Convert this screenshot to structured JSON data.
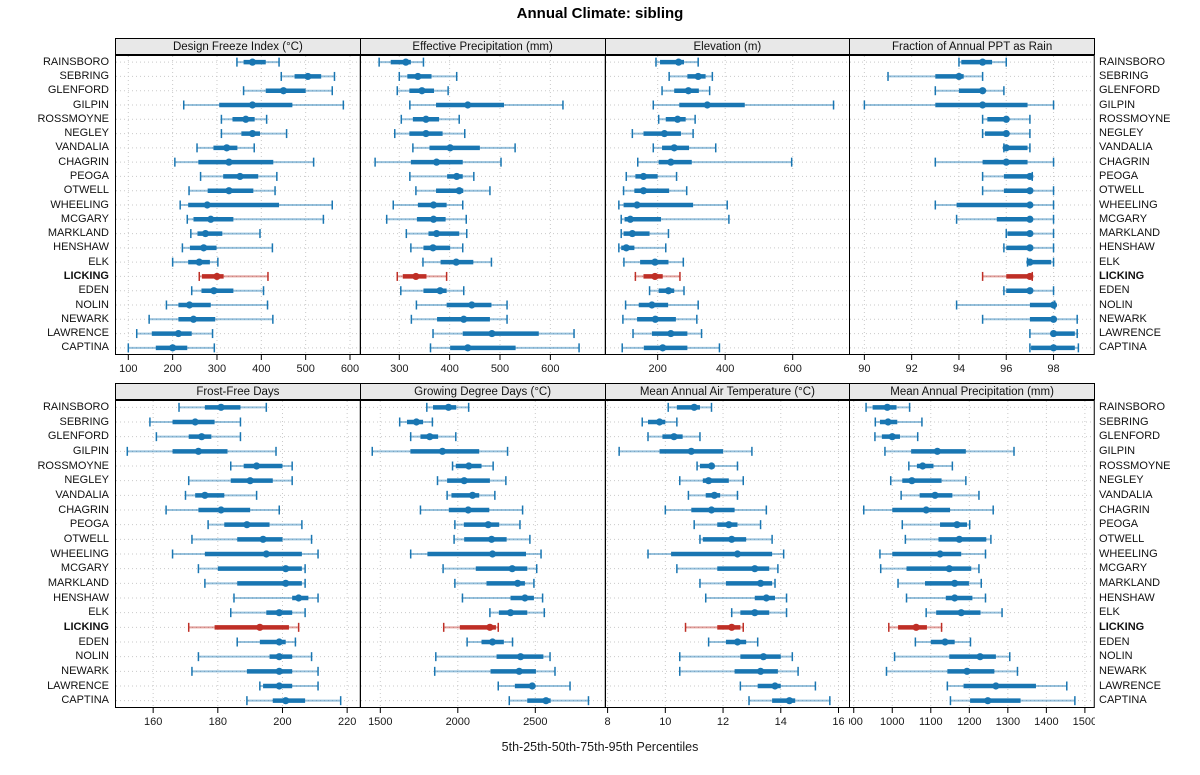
{
  "title": "Annual Climate: sibling",
  "caption": "5th-25th-50th-75th-95th Percentiles",
  "percentile_labels": [
    "5th",
    "25th",
    "50th",
    "75th",
    "95th"
  ],
  "highlight_site": "LICKING",
  "colors": {
    "primary": "#1976b2",
    "highlight": "#bf2f26",
    "grid": "#c9c9c9",
    "strip_bg": "#e8e8e8",
    "border": "#000000",
    "tick_label": "#1a1a1a"
  },
  "sites": [
    "RAINSBORO",
    "SEBRING",
    "GLENFORD",
    "GILPIN",
    "ROSSMOYNE",
    "NEGLEY",
    "VANDALIA",
    "CHAGRIN",
    "PEOGA",
    "OTWELL",
    "WHEELING",
    "MCGARY",
    "MARKLAND",
    "HENSHAW",
    "ELK",
    "LICKING",
    "EDEN",
    "NOLIN",
    "NEWARK",
    "LAWRENCE",
    "CAPTINA"
  ],
  "chart_data": [
    {
      "type": "interval-dotplot",
      "title": "Design Freeze Index (°C)",
      "grid": "dotted",
      "xlim": [
        70,
        622
      ],
      "ticks": [
        100,
        200,
        300,
        400,
        500,
        600
      ],
      "values": [
        [
          345,
          360,
          380,
          410,
          440
        ],
        [
          445,
          475,
          505,
          535,
          565
        ],
        [
          360,
          410,
          450,
          500,
          560
        ],
        [
          225,
          305,
          380,
          470,
          585
        ],
        [
          310,
          335,
          365,
          385,
          412
        ],
        [
          310,
          355,
          380,
          397,
          457
        ],
        [
          255,
          292,
          322,
          346,
          384
        ],
        [
          205,
          258,
          327,
          427,
          518
        ],
        [
          263,
          314,
          352,
          393,
          435
        ],
        [
          237,
          279,
          327,
          382,
          431
        ],
        [
          217,
          235,
          278,
          440,
          560
        ],
        [
          233,
          247,
          286,
          337,
          540
        ],
        [
          241,
          256,
          274,
          312,
          397
        ],
        [
          222,
          239,
          270,
          299,
          425
        ],
        [
          200,
          235,
          260,
          284,
          302
        ],
        [
          260,
          266,
          300,
          315,
          415
        ],
        [
          243,
          265,
          293,
          337,
          405
        ],
        [
          186,
          213,
          238,
          286,
          414
        ],
        [
          147,
          213,
          247,
          296,
          426
        ],
        [
          119,
          153,
          213,
          243,
          290
        ],
        [
          100,
          162,
          200,
          233,
          294
        ]
      ]
    },
    {
      "type": "interval-dotplot",
      "title": "Effective Precipitation (mm)",
      "grid": "dotted",
      "xlim": [
        222,
        708
      ],
      "ticks": [
        300,
        400,
        500,
        600
      ],
      "values": [
        [
          260,
          283,
          313,
          323,
          348
        ],
        [
          300,
          316,
          337,
          364,
          414
        ],
        [
          296,
          320,
          345,
          369,
          397
        ],
        [
          321,
          373,
          436,
          508,
          625
        ],
        [
          304,
          327,
          353,
          379,
          419
        ],
        [
          291,
          320,
          353,
          386,
          430
        ],
        [
          327,
          360,
          401,
          460,
          530
        ],
        [
          252,
          323,
          374,
          426,
          502
        ],
        [
          321,
          395,
          414,
          426,
          448
        ],
        [
          333,
          373,
          419,
          427,
          480
        ],
        [
          288,
          337,
          368,
          394,
          426
        ],
        [
          275,
          335,
          368,
          392,
          433
        ],
        [
          314,
          358,
          374,
          419,
          434
        ],
        [
          323,
          348,
          367,
          401,
          426
        ],
        [
          347,
          382,
          413,
          447,
          483
        ],
        [
          296,
          307,
          333,
          354,
          394
        ],
        [
          303,
          348,
          381,
          394,
          428
        ],
        [
          334,
          394,
          444,
          483,
          514
        ],
        [
          324,
          375,
          428,
          480,
          514
        ],
        [
          367,
          426,
          484,
          577,
          647
        ],
        [
          362,
          401,
          436,
          531,
          657
        ]
      ]
    },
    {
      "type": "interval-dotplot",
      "title": "Elevation (m)",
      "grid": "dotted",
      "xlim": [
        44,
        769
      ],
      "ticks": [
        200,
        400,
        600
      ],
      "values": [
        [
          195,
          207,
          262,
          278,
          320
        ],
        [
          234,
          288,
          320,
          342,
          362
        ],
        [
          213,
          249,
          291,
          322,
          354
        ],
        [
          187,
          264,
          347,
          458,
          721
        ],
        [
          203,
          224,
          259,
          283,
          311
        ],
        [
          125,
          158,
          220,
          269,
          305
        ],
        [
          187,
          213,
          249,
          293,
          372
        ],
        [
          141,
          203,
          239,
          301,
          597
        ],
        [
          107,
          134,
          158,
          200,
          256
        ],
        [
          99,
          131,
          158,
          234,
          286
        ],
        [
          85,
          99,
          139,
          305,
          406
        ],
        [
          92,
          102,
          119,
          210,
          411
        ],
        [
          92,
          99,
          125,
          176,
          232
        ],
        [
          85,
          92,
          107,
          131,
          224
        ],
        [
          100,
          148,
          192,
          232,
          276
        ],
        [
          134,
          158,
          192,
          215,
          266
        ],
        [
          176,
          203,
          232,
          249,
          278
        ],
        [
          105,
          144,
          183,
          231,
          320
        ],
        [
          97,
          139,
          193,
          254,
          316
        ],
        [
          127,
          183,
          239,
          288,
          330
        ],
        [
          95,
          159,
          215,
          288,
          383
        ]
      ]
    },
    {
      "type": "interval-dotplot",
      "title": "Fraction of Annual PPT as Rain",
      "grid": "dotted",
      "xlim": [
        89.35,
        99.7
      ],
      "ticks": [
        90,
        92,
        94,
        96,
        98
      ],
      "values": [
        [
          94,
          94.1,
          95,
          95.4,
          96
        ],
        [
          91,
          93,
          94,
          94.2,
          95
        ],
        [
          93,
          94,
          95,
          95.1,
          95.9
        ],
        [
          90,
          93,
          95,
          96.9,
          98
        ],
        [
          95,
          95.2,
          96,
          96.1,
          97
        ],
        [
          95,
          95.1,
          96,
          96.1,
          97
        ],
        [
          95.9,
          95.95,
          96,
          96.9,
          97
        ],
        [
          93,
          95,
          96,
          96.9,
          98
        ],
        [
          95,
          95.9,
          97,
          97,
          97.1
        ],
        [
          95,
          95.9,
          97,
          97.05,
          98
        ],
        [
          93,
          93.9,
          97,
          97,
          98
        ],
        [
          93.9,
          95.6,
          97,
          97.05,
          98
        ],
        [
          96,
          96.05,
          97,
          97.05,
          98
        ],
        [
          95.9,
          96,
          97,
          97.05,
          98
        ],
        [
          96.9,
          96.95,
          97,
          97.9,
          98
        ],
        [
          95,
          96,
          97,
          97,
          97.1
        ],
        [
          95.9,
          96,
          97,
          97.05,
          98
        ],
        [
          93.9,
          97,
          98,
          98,
          98.05
        ],
        [
          95,
          97,
          98,
          98.05,
          99
        ],
        [
          97,
          97.9,
          98,
          98.9,
          99
        ],
        [
          97,
          97.05,
          98,
          98.9,
          99.05
        ]
      ]
    },
    {
      "type": "interval-dotplot",
      "title": "Frost-Free Days",
      "grid": "dotted",
      "xlim": [
        148.2,
        223.9
      ],
      "ticks": [
        160,
        180,
        200,
        220
      ],
      "values": [
        [
          168,
          176,
          181,
          187,
          195
        ],
        [
          159,
          166,
          173,
          179,
          187
        ],
        [
          161,
          171,
          175,
          178,
          187
        ],
        [
          152,
          166,
          174,
          183,
          198
        ],
        [
          184,
          188,
          192,
          200,
          203
        ],
        [
          171,
          184,
          190,
          197,
          203
        ],
        [
          170,
          173,
          176,
          182,
          192
        ],
        [
          164,
          174,
          181,
          190,
          199
        ],
        [
          177,
          182,
          189,
          196,
          206
        ],
        [
          172,
          186,
          194,
          200,
          209
        ],
        [
          166,
          176,
          195,
          206,
          211
        ],
        [
          174,
          180,
          201,
          206,
          207
        ],
        [
          176,
          186,
          201,
          206,
          207
        ],
        [
          185,
          203,
          205,
          208,
          211
        ],
        [
          184,
          195,
          199,
          203,
          207
        ],
        [
          171,
          179,
          193,
          202,
          205
        ],
        [
          186,
          193,
          199,
          201,
          204
        ],
        [
          174,
          196,
          199,
          203,
          209
        ],
        [
          172,
          189,
          199,
          203,
          211
        ],
        [
          193,
          194,
          199,
          203,
          211
        ],
        [
          189,
          197,
          201,
          207,
          218
        ]
      ]
    },
    {
      "type": "interval-dotplot",
      "title": "Growing Degree Days (°C)",
      "grid": "dotted",
      "xlim": [
        1369,
        2948
      ],
      "ticks": [
        1500,
        2000,
        2500
      ],
      "values": [
        [
          1800,
          1840,
          1940,
          1990,
          2070
        ],
        [
          1625,
          1672,
          1733,
          1776,
          1836
        ],
        [
          1696,
          1759,
          1819,
          1873,
          1987
        ],
        [
          1448,
          1694,
          1901,
          2138,
          2321
        ],
        [
          1966,
          1987,
          2071,
          2153,
          2228
        ],
        [
          1869,
          1931,
          2041,
          2207,
          2310
        ],
        [
          1931,
          1959,
          2095,
          2138,
          2239
        ],
        [
          1759,
          1942,
          2067,
          2203,
          2418
        ],
        [
          1981,
          2039,
          2196,
          2267,
          2401
        ],
        [
          1976,
          2041,
          2218,
          2315,
          2465
        ],
        [
          1696,
          1804,
          2224,
          2440,
          2537
        ],
        [
          1905,
          2116,
          2351,
          2448,
          2509
        ],
        [
          1981,
          2185,
          2386,
          2433,
          2491
        ],
        [
          2030,
          2340,
          2433,
          2491,
          2547
        ],
        [
          2207,
          2265,
          2340,
          2448,
          2558
        ],
        [
          1909,
          2013,
          2207,
          2246,
          2261
        ],
        [
          2060,
          2153,
          2224,
          2297,
          2353
        ],
        [
          1858,
          2250,
          2405,
          2552,
          2595
        ],
        [
          1851,
          2211,
          2396,
          2504,
          2627
        ],
        [
          2261,
          2368,
          2480,
          2487,
          2724
        ],
        [
          2332,
          2448,
          2569,
          2599,
          2843
        ]
      ]
    },
    {
      "type": "interval-dotplot",
      "title": "Mean Annual Air Temperature (°C)",
      "grid": "dotted",
      "xlim": [
        7.91,
        16.39
      ],
      "ticks": [
        8,
        10,
        12,
        14,
        16
      ],
      "values": [
        [
          10.1,
          10.4,
          11.0,
          11.2,
          11.6
        ],
        [
          9.2,
          9.4,
          9.8,
          10.0,
          10.4
        ],
        [
          9.4,
          9.9,
          10.3,
          10.6,
          11.2
        ],
        [
          8.4,
          9.8,
          10.9,
          12.0,
          13.0
        ],
        [
          11.1,
          11.2,
          11.6,
          11.7,
          12.5
        ],
        [
          10.5,
          11.3,
          11.5,
          12.2,
          12.7
        ],
        [
          10.8,
          11.4,
          11.7,
          11.9,
          12.5
        ],
        [
          10.0,
          10.9,
          11.6,
          12.4,
          13.5
        ],
        [
          11.0,
          11.8,
          12.2,
          12.5,
          13.3
        ],
        [
          11.2,
          11.3,
          12.3,
          12.8,
          13.7
        ],
        [
          9.4,
          10.2,
          12.5,
          13.7,
          14.1
        ],
        [
          10.4,
          11.8,
          13.1,
          13.6,
          13.9
        ],
        [
          11.2,
          12.1,
          13.3,
          13.7,
          13.8
        ],
        [
          11.4,
          13.1,
          13.5,
          13.8,
          14.2
        ],
        [
          12.3,
          12.6,
          13.1,
          13.6,
          14.2
        ],
        [
          10.7,
          11.8,
          12.3,
          12.6,
          12.7
        ],
        [
          11.5,
          12.1,
          12.5,
          12.8,
          13.2
        ],
        [
          10.5,
          12.6,
          13.4,
          14.0,
          14.4
        ],
        [
          10.5,
          12.4,
          13.3,
          13.9,
          14.6
        ],
        [
          12.6,
          13.2,
          13.8,
          14.0,
          15.2
        ],
        [
          12.9,
          13.7,
          14.3,
          14.5,
          15.7
        ]
      ]
    },
    {
      "type": "interval-dotplot",
      "title": "Mean Annual Precipitation (mm)",
      "grid": "dotted",
      "xlim": [
        887.7,
        1523
      ],
      "ticks": [
        900,
        1000,
        1100,
        1200,
        1300,
        1400,
        1500
      ],
      "values": [
        [
          932,
          949,
          987,
          1011,
          1045
        ],
        [
          956,
          968,
          989,
          1013,
          1077
        ],
        [
          955,
          973,
          1000,
          1020,
          1066
        ],
        [
          981,
          1049,
          1117,
          1191,
          1316
        ],
        [
          1043,
          1064,
          1079,
          1107,
          1156
        ],
        [
          996,
          1026,
          1051,
          1128,
          1191
        ],
        [
          1023,
          1071,
          1111,
          1156,
          1225
        ],
        [
          926,
          1000,
          1088,
          1150,
          1262
        ],
        [
          1026,
          1124,
          1168,
          1194,
          1201
        ],
        [
          1034,
          1120,
          1174,
          1244,
          1256
        ],
        [
          968,
          1000,
          1124,
          1179,
          1242
        ],
        [
          970,
          1037,
          1148,
          1205,
          1225
        ],
        [
          1015,
          1085,
          1162,
          1199,
          1231
        ],
        [
          1037,
          1139,
          1162,
          1208,
          1242
        ],
        [
          1088,
          1114,
          1179,
          1229,
          1285
        ],
        [
          991,
          1015,
          1062,
          1090,
          1128
        ],
        [
          1060,
          1100,
          1137,
          1162,
          1203
        ],
        [
          1006,
          1148,
          1228,
          1269,
          1305
        ],
        [
          985,
          1143,
          1194,
          1265,
          1325
        ],
        [
          1143,
          1185,
          1269,
          1373,
          1453
        ],
        [
          1151,
          1202,
          1248,
          1333,
          1474
        ]
      ]
    }
  ]
}
